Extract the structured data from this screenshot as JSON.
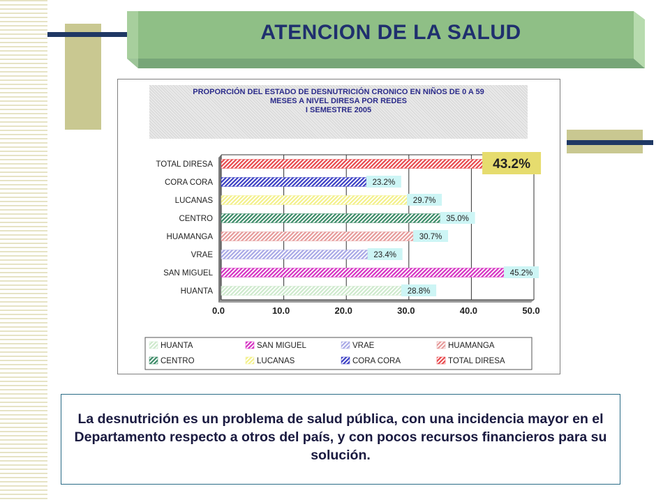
{
  "slide": {
    "title": "ATENCION DE LA SALUD",
    "body_text": "La desnutrición es un problema de salud pública, con una incidencia mayor en el Departamento respecto a otros del país, y con pocos recursos financieros para su solución."
  },
  "colors": {
    "title_text": "#1f2f6e",
    "banner_face": "#8fbf86",
    "banner_light": "#b7dbae",
    "banner_dark": "#5f9660",
    "deco_khaki": "#c9c891",
    "deco_navy": "#1f3864",
    "highlight_label_bg": "#e6dc6e"
  },
  "chart_data": {
    "type": "bar",
    "orientation": "horizontal",
    "title_lines": [
      "PROPORCIÓN DEL ESTADO DE DESNUTRICIÓN CRONICO EN NIÑOS  DE 0 A 59",
      "MESES A NIVEL DIRESA POR REDES",
      "I SEMESTRE 2005"
    ],
    "categories": [
      "TOTAL DIRESA",
      "CORA CORA",
      "LUCANAS",
      "CENTRO",
      "HUAMANGA",
      "VRAE",
      "SAN MIGUEL",
      "HUANTA"
    ],
    "values": [
      43.2,
      23.2,
      29.7,
      35.0,
      30.7,
      23.4,
      45.2,
      28.8
    ],
    "value_labels": [
      "43.2%",
      "23.2%",
      "29.7%",
      "35.0%",
      "30.7%",
      "23.4%",
      "45.2%",
      "28.8%"
    ],
    "bar_colors": [
      "#e8484c",
      "#3b3fc4",
      "#f3f08a",
      "#3a8a66",
      "#e69a9a",
      "#a8a8e6",
      "#d531c2",
      "#cde9cc"
    ],
    "highlight_index": 0,
    "x_ticks": [
      "0.0",
      "10.0",
      "20.0",
      "30.0",
      "40.0",
      "50.0"
    ],
    "xlim": [
      0,
      50
    ],
    "grid": true,
    "legend": {
      "placement": "bottom",
      "entries": [
        {
          "name": "HUANTA",
          "color": "#cde9cc"
        },
        {
          "name": "SAN MIGUEL",
          "color": "#d531c2"
        },
        {
          "name": "VRAE",
          "color": "#a8a8e6"
        },
        {
          "name": "HUAMANGA",
          "color": "#e69a9a"
        },
        {
          "name": "CENTRO",
          "color": "#3a8a66"
        },
        {
          "name": "LUCANAS",
          "color": "#f3f08a"
        },
        {
          "name": "CORA CORA",
          "color": "#3b3fc4"
        },
        {
          "name": "TOTAL DIRESA",
          "color": "#e8484c"
        }
      ]
    }
  }
}
